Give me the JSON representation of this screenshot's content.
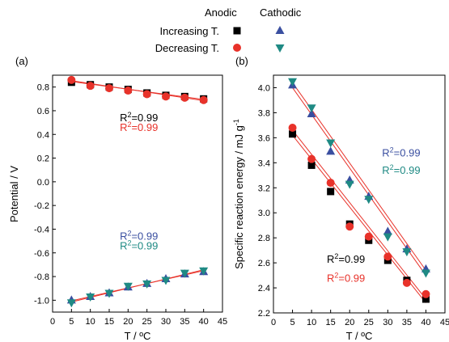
{
  "legend": {
    "col_headers": [
      "Anodic",
      "Cathodic"
    ],
    "rows": [
      {
        "label": "Increasing T.",
        "anodic_marker": "square",
        "anodic_color": "#000000",
        "cathodic_marker": "triangle-up",
        "cathodic_color": "#3a4fa0"
      },
      {
        "label": "Decreasing T.",
        "anodic_marker": "circle",
        "anodic_color": "#e8322a",
        "cathodic_marker": "triangle-down",
        "cathodic_color": "#1f8a84"
      }
    ]
  },
  "colors": {
    "increasing_anodic": "#000000",
    "decreasing_anodic": "#e8322a",
    "increasing_cathodic": "#3a4fa0",
    "decreasing_cathodic": "#1f8a84",
    "fit_line": "#e8322a"
  },
  "chart_data": [
    {
      "type": "scatter",
      "panel_label": "(a)",
      "xlabel": "T / ºC",
      "ylabel": "Potential / V",
      "xlim": [
        0,
        45
      ],
      "ylim": [
        -1.1,
        0.9
      ],
      "xticks": [
        "0",
        "5",
        "10",
        "15",
        "20",
        "25",
        "30",
        "35",
        "40",
        "45"
      ],
      "yticks": [
        "-1.0",
        "-0.8",
        "-0.6",
        "-0.4",
        "-0.2",
        "0.0",
        "0.2",
        "0.4",
        "0.6",
        "0.8"
      ],
      "x": [
        5,
        10,
        15,
        20,
        25,
        30,
        35,
        40
      ],
      "series": [
        {
          "key": "increasing_anodic",
          "marker": "square",
          "values": [
            0.84,
            0.82,
            0.8,
            0.78,
            0.75,
            0.73,
            0.72,
            0.7
          ]
        },
        {
          "key": "decreasing_anodic",
          "marker": "circle",
          "values": [
            0.86,
            0.81,
            0.79,
            0.77,
            0.74,
            0.72,
            0.71,
            0.69
          ]
        },
        {
          "key": "increasing_cathodic",
          "marker": "triangle-up",
          "values": [
            -1.0,
            -0.97,
            -0.94,
            -0.89,
            -0.86,
            -0.82,
            -0.78,
            -0.76
          ]
        },
        {
          "key": "decreasing_cathodic",
          "marker": "triangle-down",
          "values": [
            -1.02,
            -0.97,
            -0.94,
            -0.88,
            -0.86,
            -0.83,
            -0.77,
            -0.75
          ]
        }
      ],
      "fits": [
        {
          "x": [
            5,
            40
          ],
          "y": [
            0.846,
            0.695
          ]
        },
        {
          "x": [
            5,
            40
          ],
          "y": [
            0.854,
            0.685
          ]
        },
        {
          "x": [
            5,
            40
          ],
          "y": [
            -1.005,
            -0.75
          ]
        },
        {
          "x": [
            5,
            40
          ],
          "y": [
            -1.015,
            -0.742
          ]
        }
      ],
      "annotations": [
        {
          "prefix": "R",
          "sup": "2",
          "text": "=0.99",
          "color": "#000000",
          "at": [
            17.8,
            0.51
          ]
        },
        {
          "prefix": "R",
          "sup": "2",
          "text": "=0.99",
          "color": "#e8322a",
          "at": [
            17.8,
            0.43
          ]
        },
        {
          "prefix": "R",
          "sup": "2",
          "text": "=0.99",
          "color": "#3a4fa0",
          "at": [
            17.8,
            -0.49
          ]
        },
        {
          "prefix": "R",
          "sup": "2",
          "text": "=0.99",
          "color": "#1f8a84",
          "at": [
            17.8,
            -0.57
          ]
        }
      ]
    },
    {
      "type": "scatter",
      "panel_label": "(b)",
      "xlabel": "T / ºC",
      "ylabel": "Specific reaction energy / mJ g",
      "ylabel_sup": "-1",
      "xlim": [
        0,
        45
      ],
      "ylim": [
        2.2,
        4.1
      ],
      "xticks": [
        "0",
        "5",
        "10",
        "15",
        "20",
        "25",
        "30",
        "35",
        "40",
        "45"
      ],
      "yticks": [
        "2.2",
        "2.4",
        "2.6",
        "2.8",
        "3.0",
        "3.2",
        "3.4",
        "3.6",
        "3.8",
        "4.0"
      ],
      "x": [
        5,
        10,
        15,
        20,
        25,
        30,
        35,
        40
      ],
      "series": [
        {
          "key": "increasing_anodic",
          "marker": "square",
          "values": [
            3.63,
            3.38,
            3.17,
            2.91,
            2.78,
            2.62,
            2.46,
            2.31
          ]
        },
        {
          "key": "decreasing_anodic",
          "marker": "circle",
          "values": [
            3.68,
            3.43,
            3.24,
            2.89,
            2.81,
            2.65,
            2.44,
            2.35
          ]
        },
        {
          "key": "increasing_cathodic",
          "marker": "triangle-up",
          "values": [
            4.02,
            3.79,
            3.49,
            3.26,
            3.13,
            2.85,
            2.71,
            2.55
          ]
        },
        {
          "key": "decreasing_cathodic",
          "marker": "triangle-down",
          "values": [
            4.05,
            3.84,
            3.56,
            3.23,
            3.11,
            2.81,
            2.69,
            2.52
          ]
        }
      ],
      "fits": [
        {
          "x": [
            5,
            40
          ],
          "y": [
            3.62,
            2.28
          ]
        },
        {
          "x": [
            5,
            40
          ],
          "y": [
            3.66,
            2.31
          ]
        },
        {
          "x": [
            5,
            40
          ],
          "y": [
            4.0,
            2.5
          ]
        },
        {
          "x": [
            5,
            40
          ],
          "y": [
            4.04,
            2.54
          ]
        }
      ],
      "annotations": [
        {
          "prefix": "R",
          "sup": "2",
          "text": "=0.99",
          "color": "#3a4fa0",
          "at": [
            28.5,
            3.45
          ]
        },
        {
          "prefix": "R",
          "sup": "2",
          "text": "=0.99",
          "color": "#1f8a84",
          "at": [
            28.5,
            3.31
          ]
        },
        {
          "prefix": "R",
          "sup": "2",
          "text": "=0.99",
          "color": "#000000",
          "at": [
            14.0,
            2.6
          ]
        },
        {
          "prefix": "R",
          "sup": "2",
          "text": "=0.99",
          "color": "#e8322a",
          "at": [
            14.0,
            2.45
          ]
        }
      ]
    }
  ]
}
